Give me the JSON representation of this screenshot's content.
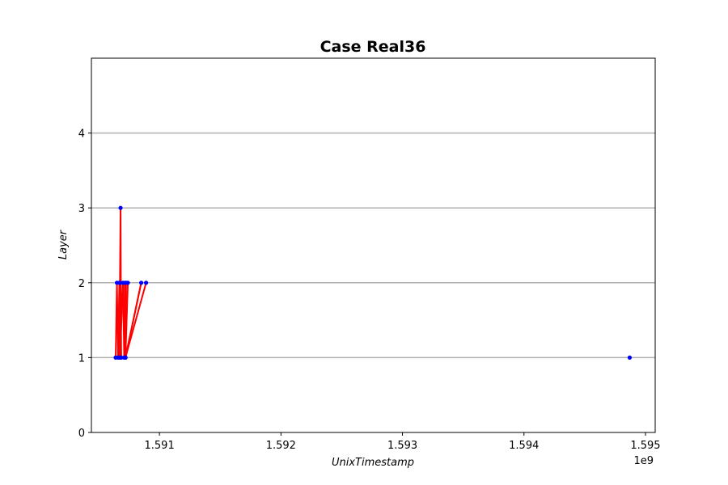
{
  "chart_data": {
    "type": "line",
    "title": "Case Real36",
    "xlabel": "UnixTimestamp",
    "ylabel": "Layer",
    "x_offset_label": "1e9",
    "x_scale": 1000000000,
    "xlim": [
      1.59044,
      1.59508
    ],
    "ylim": [
      0,
      5
    ],
    "x_ticks": [
      1.591,
      1.592,
      1.593,
      1.594,
      1.595
    ],
    "x_tick_labels": [
      "1.591",
      "1.592",
      "1.593",
      "1.594",
      "1.595"
    ],
    "y_ticks": [
      0,
      1,
      2,
      3,
      4
    ],
    "y_tick_labels": [
      "0",
      "1",
      "2",
      "3",
      "4"
    ],
    "grid": "horizontal",
    "line_color": "#ff0000",
    "marker_color": "#0000ff",
    "grid_color": "#b0b0b0",
    "series": [
      {
        "x": [
          1590640000,
          1590650000,
          1590660000,
          1590670000,
          1590665000,
          1590675000,
          1590680000,
          1590685000,
          1590670000,
          1590675000,
          1590700000,
          1590710000,
          1590715000,
          1590720000,
          1590725000,
          1590740000,
          1590720000,
          1590850000,
          1590720000,
          1590890000,
          1594870000
        ],
        "y": [
          1,
          2,
          1,
          2,
          1,
          2,
          3,
          1,
          2,
          1,
          2,
          1,
          2,
          1,
          2,
          2,
          1,
          2,
          1,
          2,
          1
        ],
        "connected": [
          true,
          true,
          true,
          true,
          true,
          true,
          true,
          true,
          true,
          true,
          true,
          true,
          true,
          true,
          true,
          true,
          true,
          true,
          true,
          true,
          false
        ]
      }
    ]
  }
}
